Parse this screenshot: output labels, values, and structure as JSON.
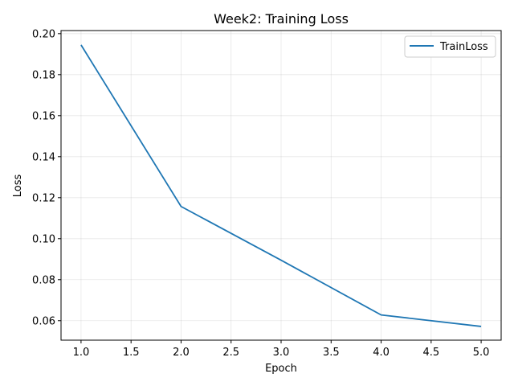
{
  "chart_data": {
    "type": "line",
    "title": "Week2: Training Loss",
    "xlabel": "Epoch",
    "ylabel": "Loss",
    "xlim": [
      0.8,
      5.2
    ],
    "ylim": [
      0.0505,
      0.2015
    ],
    "xticks": [
      1.0,
      1.5,
      2.0,
      2.5,
      3.0,
      3.5,
      4.0,
      4.5,
      5.0
    ],
    "xtick_labels": [
      "1.0",
      "1.5",
      "2.0",
      "2.5",
      "3.0",
      "3.5",
      "4.0",
      "4.5",
      "5.0"
    ],
    "yticks": [
      0.06,
      0.08,
      0.1,
      0.12,
      0.14,
      0.16,
      0.18,
      0.2
    ],
    "ytick_labels": [
      "0.06",
      "0.08",
      "0.10",
      "0.12",
      "0.14",
      "0.16",
      "0.18",
      "0.20"
    ],
    "grid": true,
    "legend_position": "top-right",
    "series": [
      {
        "name": "TrainLoss",
        "color": "#1f77b4",
        "x": [
          1,
          2,
          3,
          4,
          5
        ],
        "y": [
          0.1945,
          0.1157,
          0.0895,
          0.0628,
          0.0572
        ]
      }
    ]
  }
}
